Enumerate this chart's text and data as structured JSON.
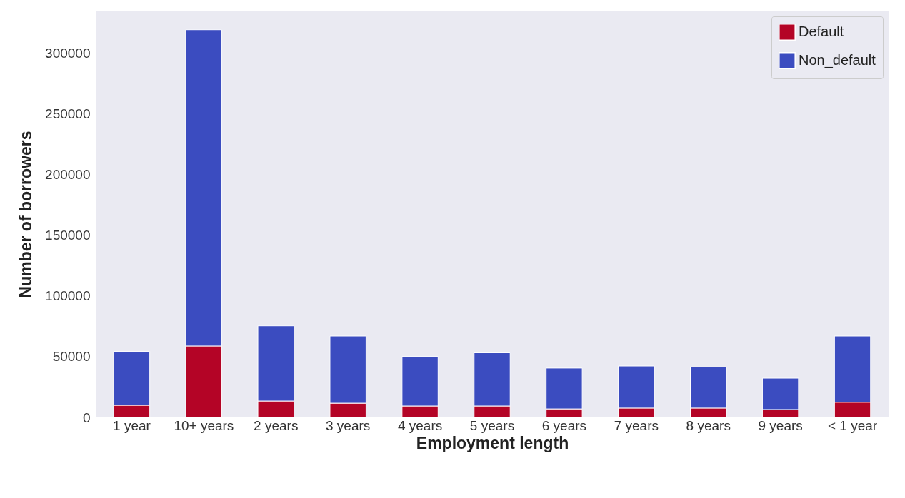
{
  "chart_data": {
    "type": "bar",
    "stacked": true,
    "xlabel": "Employment length",
    "ylabel": "Number of borrowers",
    "categories": [
      "1 year",
      "10+ years",
      "2 years",
      "3 years",
      "4 years",
      "5 years",
      "6 years",
      "7 years",
      "8 years",
      "9 years",
      "< 1 year"
    ],
    "series": [
      {
        "name": "Default",
        "color": "#b40426",
        "values": [
          10000,
          58800,
          13500,
          11700,
          9400,
          9400,
          7000,
          7700,
          7700,
          6500,
          12500
        ]
      },
      {
        "name": "Non_default",
        "color": "#3b4cc0",
        "values": [
          44400,
          260500,
          61900,
          55300,
          40900,
          43800,
          33600,
          34600,
          33800,
          25800,
          54500
        ]
      }
    ],
    "ylim": [
      0,
      335000
    ],
    "yticks": [
      0,
      50000,
      100000,
      150000,
      200000,
      250000,
      300000
    ],
    "grid": false,
    "legend": "top right"
  }
}
